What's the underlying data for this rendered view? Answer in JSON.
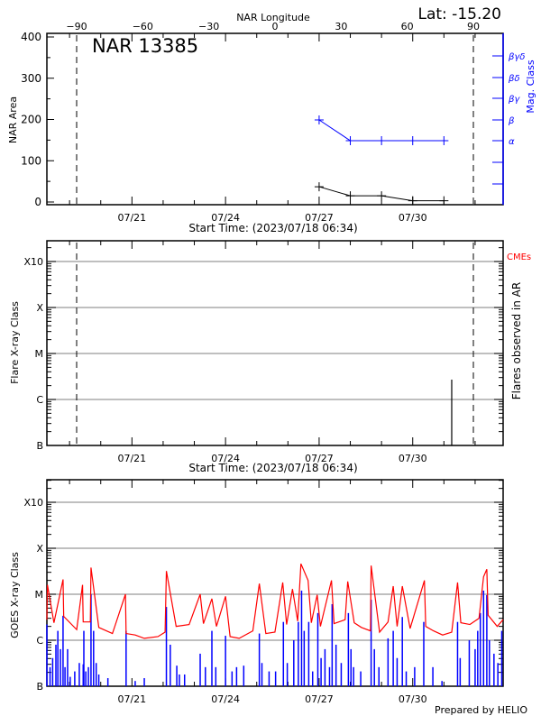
{
  "header": {
    "latitude_label": "Lat: -15.20",
    "region_title": "NAR 13385",
    "footer": "Prepared by HELIO"
  },
  "colors": {
    "axis": "#000000",
    "grid": "#999999",
    "mag_class": "#0000ff",
    "goes_long": "#ff0000",
    "goes_short": "#0000ff",
    "cme": "#ff0000"
  },
  "chart_data": [
    {
      "type": "line",
      "panel": "nar",
      "title": "NAR 13385",
      "ylabel": "NAR Area",
      "y2label": "Mag. Class",
      "top_axis_label": "NAR Longitude",
      "xlabel": "Start Time: (2023/07/18 06:34)",
      "x_tick_labels": [
        "07/21",
        "07/24",
        "07/27",
        "07/30"
      ],
      "x_ticks": [
        "07/21 00:00",
        "07/24 00:00",
        "07/27 00:00",
        "07/30 00:00"
      ],
      "ylim": [
        0,
        400
      ],
      "y_tick_labels": [
        "0",
        "100",
        "200",
        "300",
        "400"
      ],
      "top_tick_labels": [
        "-90",
        "-60",
        "-30",
        "0",
        "30",
        "60",
        "90"
      ],
      "mag_class_labels": [
        "α",
        "β",
        "βγ",
        "βδ",
        "βγδ"
      ],
      "limb_longitudes": [
        -90,
        90
      ],
      "series": [
        {
          "key": "area",
          "x": [
            "07/27 00:00",
            "07/28 00:00",
            "07/29 00:00",
            "07/30 00:00",
            "07/31 00:00"
          ],
          "values": [
            37,
            15,
            15,
            3,
            3
          ]
        },
        {
          "key": "mag_class",
          "x": [
            "07/27 00:00",
            "07/28 00:00",
            "07/29 00:00",
            "07/30 00:00",
            "07/31 00:00"
          ],
          "values": [
            "β",
            "α",
            "α",
            "α",
            "α"
          ]
        }
      ]
    },
    {
      "type": "bar",
      "panel": "flares",
      "ylabel": "Flare X-ray Class",
      "y2label": "Flares observed in AR",
      "cme_label": "CMEs",
      "xlabel": "Start Time: (2023/07/18 06:34)",
      "x_tick_labels": [
        "07/21",
        "07/24",
        "07/27",
        "07/30"
      ],
      "y_tick_labels": [
        "B",
        "C",
        "M",
        "X",
        "X10"
      ],
      "log_scale": true,
      "grid": true,
      "flares": [
        {
          "time": "07/31 06:00",
          "class": "C2.7",
          "flux": 2.7e-06
        }
      ]
    },
    {
      "type": "line",
      "panel": "goes",
      "ylabel": "GOES X-ray Class",
      "x_tick_labels": [
        "07/21",
        "07/24",
        "07/27",
        "07/30"
      ],
      "y_tick_labels": [
        "B",
        "C",
        "M",
        "X",
        "X10"
      ],
      "log_scale": true,
      "grid": true,
      "series": [
        {
          "key": "long",
          "color": "#ff0000",
          "x": [
            "07/18 06:34",
            "07/18 07:00",
            "07/18 12:00",
            "07/18 19:00",
            "07/18 19:30",
            "07/19 05:30",
            "07/19 10:00",
            "07/19 10:30",
            "07/19 16:00",
            "07/19 16:30",
            "07/19 22:30",
            "07/20 09:00",
            "07/20 19:00",
            "07/20 19:30",
            "07/21 02:30",
            "07/21 09:30",
            "07/21 20:00",
            "07/22 01:30",
            "07/22 02:30",
            "07/22 10:00",
            "07/22 20:00",
            "07/23 04:30",
            "07/23 07:00",
            "07/23 13:30",
            "07/23 17:00",
            "07/24 00:00",
            "07/24 03:30",
            "07/24 10:30",
            "07/24 21:00",
            "07/25 02:00",
            "07/25 07:00",
            "07/25 14:00",
            "07/25 20:00",
            "07/25 23:00",
            "07/26 03:30",
            "07/26 07:30",
            "07/26 10:00",
            "07/26 15:30",
            "07/26 18:00",
            "07/26 22:30",
            "07/27 01:00",
            "07/27 09:30",
            "07/27 11:30",
            "07/27 20:00",
            "07/27 22:00",
            "07/28 03:00",
            "07/28 08:30",
            "07/28 15:30",
            "07/28 16:00",
            "07/28 22:30",
            "07/29 05:00",
            "07/29 09:00",
            "07/29 12:00",
            "07/29 16:00",
            "07/29 22:00",
            "07/30 09:00",
            "07/30 10:00",
            "07/30 16:00",
            "07/30 23:00",
            "07/31 06:00",
            "07/31 10:30",
            "07/31 13:00",
            "07/31 20:00",
            "08/01 03:00",
            "08/01 06:30",
            "08/01 09:00",
            "08/01 10:00",
            "08/01 17:00",
            "08/01 21:30"
          ],
          "values": [
            2.8e-06,
            1.6e-05,
            2.4e-06,
            2.1e-05,
            3.3e-06,
            1.7e-06,
            1.6e-05,
            2.5e-06,
            2.5e-06,
            3.8e-05,
            1.9e-06,
            1.4e-06,
            1e-05,
            1.4e-06,
            1.3e-06,
            1.1e-06,
            1.2e-06,
            1.5e-06,
            3.2e-05,
            2e-06,
            2.2e-06,
            1e-05,
            2.3e-06,
            8e-06,
            2e-06,
            9e-06,
            1.2e-06,
            1.1e-06,
            1.6e-06,
            1.7e-05,
            1.4e-06,
            1.5e-06,
            1.8e-05,
            2.2e-06,
            1.3e-05,
            2.6e-06,
            4.6e-05,
            2e-05,
            2.4e-06,
            9.7e-06,
            2e-06,
            2e-05,
            2.3e-06,
            2.8e-06,
            1.9e-05,
            2.4e-06,
            1.9e-06,
            1.6e-06,
            4.2e-05,
            1.5e-06,
            2.5e-06,
            1.5e-05,
            2e-06,
            1.5e-05,
            1.8e-06,
            2e-05,
            2e-06,
            1.6e-06,
            1.3e-06,
            1.5e-06,
            1.8e-05,
            2.4e-06,
            2.2e-06,
            3e-06,
            2.4e-05,
            3.5e-05,
            3.5e-06,
            2e-06,
            2.8e-06
          ]
        },
        {
          "key": "short",
          "color": "#0000ff",
          "x": [
            "07/18 06:34",
            "07/18 09:00",
            "07/18 11:00",
            "07/18 13:30",
            "07/18 15:00",
            "07/18 17:00",
            "07/18 19:00",
            "07/18 20:30",
            "07/18 22:30",
            "07/19 00:30",
            "07/19 04:00",
            "07/19 07:30",
            "07/19 10:30",
            "07/19 11:00",
            "07/19 12:30",
            "07/19 14:30",
            "07/19 16:30",
            "07/19 18:30",
            "07/19 20:30",
            "07/19 22:30",
            "07/20 05:30",
            "07/20 19:30",
            "07/21 02:30",
            "07/21 09:30",
            "07/22 02:30",
            "07/22 05:30",
            "07/22 10:30",
            "07/22 12:30",
            "07/22 16:30",
            "07/23 04:30",
            "07/23 08:30",
            "07/23 13:30",
            "07/23 16:30",
            "07/24 00:00",
            "07/24 05:00",
            "07/24 08:30",
            "07/24 14:00",
            "07/25 02:00",
            "07/25 04:00",
            "07/25 09:30",
            "07/25 14:30",
            "07/25 20:30",
            "07/25 23:30",
            "07/26 04:30",
            "07/26 08:00",
            "07/26 10:30",
            "07/26 12:30",
            "07/26 16:00",
            "07/26 19:00",
            "07/26 23:00",
            "07/27 01:30",
            "07/27 04:30",
            "07/27 08:00",
            "07/27 10:00",
            "07/27 13:00",
            "07/27 17:00",
            "07/27 22:30",
            "07/28 00:30",
            "07/28 02:30",
            "07/28 08:00",
            "07/28 16:00",
            "07/28 18:30",
            "07/28 22:00",
            "07/29 05:00",
            "07/29 09:00",
            "07/29 12:00",
            "07/29 16:00",
            "07/29 19:00",
            "07/30 01:30",
            "07/30 08:30",
            "07/30 15:30",
            "07/30 22:30",
            "07/31 10:30",
            "07/31 12:30",
            "07/31 19:30",
            "08/01 00:00",
            "08/01 02:00",
            "08/01 04:00",
            "08/01 06:30",
            "08/01 09:00",
            "08/01 11:00",
            "08/01 14:30",
            "08/01 17:30",
            "08/01 20:30"
          ],
          "values": [
            2.2e-06,
            2.6e-07,
            4.1e-07,
            8e-07,
            1.6e-06,
            6.4e-07,
            3.4e-06,
            2.6e-07,
            6.4e-07,
            1.6e-07,
            2.1e-07,
            3.2e-07,
            3e-07,
            1.6e-06,
            2.1e-07,
            2.6e-07,
            1e-05,
            1.6e-06,
            3.2e-07,
            1.8e-07,
            1.5e-07,
            1.6e-06,
            1.3e-07,
            1.5e-07,
            5.3e-06,
            8e-07,
            2.8e-07,
            1.8e-07,
            1.8e-07,
            5.1e-07,
            2.6e-07,
            1.6e-06,
            2.6e-07,
            1.25e-06,
            2.1e-07,
            2.6e-07,
            2.8e-07,
            1.4e-06,
            3.2e-07,
            2.1e-07,
            2.1e-07,
            2.5e-06,
            3.2e-07,
            1e-06,
            2.5e-06,
            1.2e-05,
            1.6e-06,
            2.5e-06,
            2.1e-07,
            3.9e-06,
            4.1e-07,
            6.4e-07,
            2.6e-07,
            6.1e-06,
            8e-07,
            3.2e-07,
            3.9e-06,
            6.4e-07,
            2.6e-07,
            2.1e-07,
            7.6e-06,
            6.4e-07,
            2.6e-07,
            1.1e-06,
            1.6e-06,
            4.1e-07,
            3.2e-06,
            2.1e-07,
            2.6e-07,
            2.5e-06,
            2.6e-07,
            1.3e-07,
            2.5e-06,
            4.1e-07,
            1e-06,
            6.4e-07,
            1.6e-06,
            3.9e-06,
            1.2e-05,
            9.6e-06,
            1e-06,
            5.1e-07,
            3.2e-07,
            1.6e-06
          ]
        }
      ]
    }
  ]
}
